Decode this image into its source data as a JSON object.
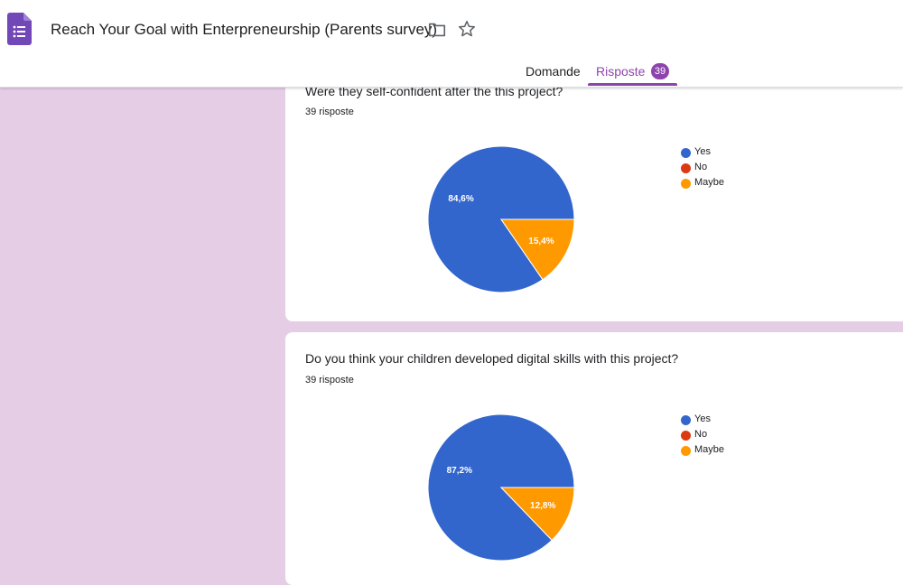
{
  "app": {
    "title": "Reach Your Goal with Enterpreneurship (Parents survey)",
    "logo_icon": "google-forms-icon",
    "folder_icon": "folder-icon",
    "star_icon": "star-icon"
  },
  "tabs": {
    "questions_label": "Domande",
    "responses_label": "Risposte",
    "responses_count": "39"
  },
  "colors": {
    "accent": "#8e44ad",
    "yes": "#3366cc",
    "no": "#dc3912",
    "maybe": "#ff9900",
    "background": "#e6cde6"
  },
  "questions": [
    {
      "title": "Were they self-confident after the this project?",
      "count_label": "39 risposte",
      "legend": [
        "Yes",
        "No",
        "Maybe"
      ],
      "chart_data": {
        "type": "pie",
        "categories": [
          "Yes",
          "No",
          "Maybe"
        ],
        "values": [
          84.6,
          0,
          15.4
        ],
        "labels": [
          "84,6%",
          "",
          "15,4%"
        ]
      }
    },
    {
      "title": "Do you think your children developed digital skills with this project?",
      "count_label": "39 risposte",
      "legend": [
        "Yes",
        "No",
        "Maybe"
      ],
      "chart_data": {
        "type": "pie",
        "categories": [
          "Yes",
          "No",
          "Maybe"
        ],
        "values": [
          87.2,
          0,
          12.8
        ],
        "labels": [
          "87,2%",
          "",
          "12,8%"
        ]
      }
    }
  ]
}
